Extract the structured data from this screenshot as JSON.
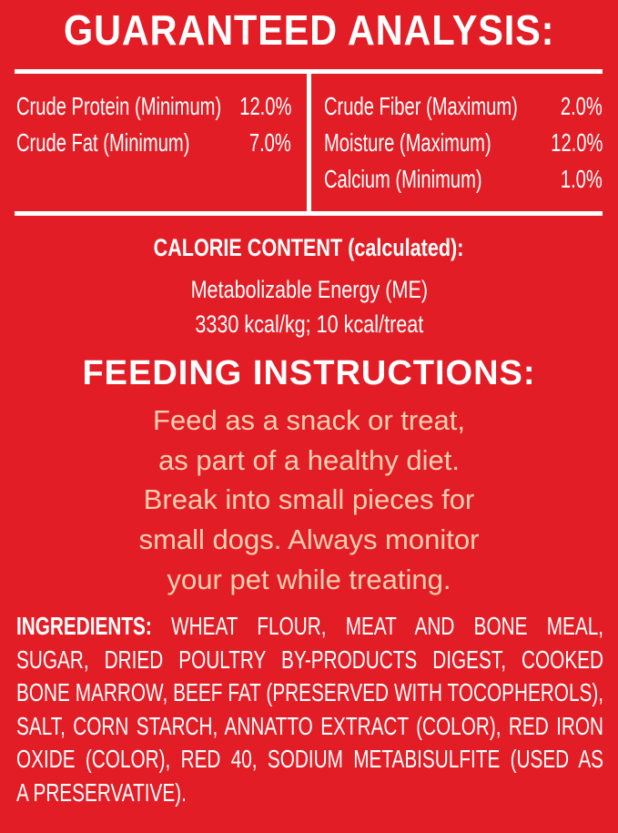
{
  "guaranteed_analysis": {
    "title": "GUARANTEED ANALYSIS:",
    "left": [
      {
        "label": "Crude Protein (Minimum)",
        "value": "12.0%"
      },
      {
        "label": "Crude Fat (Minimum)",
        "value": "7.0%"
      }
    ],
    "right": [
      {
        "label": "Crude Fiber (Maximum)",
        "value": "2.0%"
      },
      {
        "label": "Moisture (Maximum)",
        "value": "12.0%"
      },
      {
        "label": "Calcium (Minimum)",
        "value": "1.0%"
      }
    ]
  },
  "calorie_content": {
    "title": "CALORIE CONTENT (calculated):",
    "line1": "Metabolizable Energy (ME)",
    "line2": "3330 kcal/kg; 10 kcal/treat"
  },
  "feeding_instructions": {
    "title": "FEEDING INSTRUCTIONS:",
    "lines": [
      "Feed as a snack or treat,",
      "as part of a healthy diet.",
      "Break into small pieces for",
      "small dogs. Always monitor",
      "your pet while treating."
    ]
  },
  "ingredients": {
    "label": "INGREDIENTS:",
    "lines": [
      "WHEAT FLOUR, MEAT AND BONE MEAL,",
      "SUGAR, DRIED POULTRY BY-PRODUCTS DIGEST, COOKED",
      "BONE MARROW, BEEF FAT (PRESERVED WITH TOCOPHEROLS),",
      "SALT, CORN STARCH, ANNATTO EXTRACT (COLOR), RED IRON",
      "OXIDE (COLOR), RED 40, SODIUM METABISULFITE (USED AS",
      "A PRESERVATIVE)."
    ]
  },
  "colors": {
    "background": "#e31d25",
    "text": "#ffffff",
    "feeding_text": "#f9cfb2"
  }
}
